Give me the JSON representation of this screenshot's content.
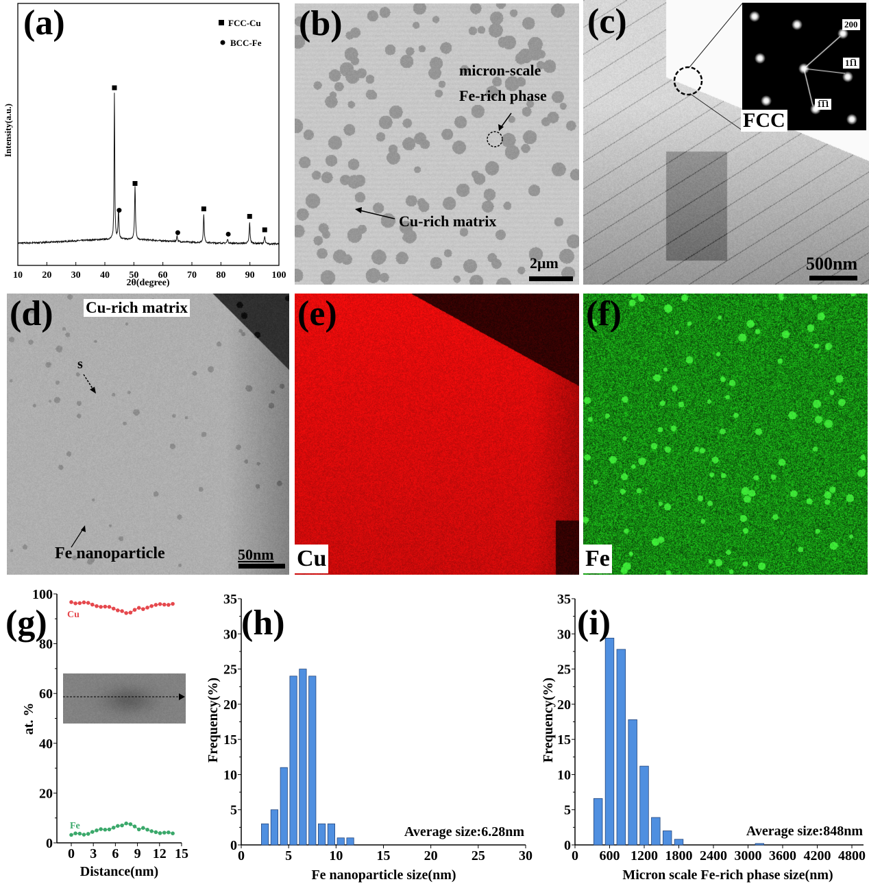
{
  "panels": {
    "b": {
      "label": "(b)",
      "annotation_phase_1": "micron-scale",
      "annotation_phase_2": "Fe-rich phase",
      "annotation_matrix": "Cu-rich matrix",
      "scale_bar": "2μm"
    },
    "c": {
      "label": "(c)",
      "scale_bar": "500nm",
      "inset": {
        "structure": "FCC",
        "spot_200": "200",
        "spot_a": "11̅1",
        "spot_b": "1̅1̅1"
      }
    },
    "d": {
      "label": "(d)",
      "region": "Cu-rich matrix",
      "line_start": "s",
      "particle": "Fe nanoparticle",
      "scale_bar": "50nm"
    },
    "e": {
      "label": "(e)",
      "element": "Cu",
      "color": "#ff1a1a"
    },
    "f": {
      "label": "(f)",
      "element": "Fe",
      "color": "#2fd12f"
    }
  },
  "chart_data": [
    {
      "panel_label": "(a)",
      "type": "line",
      "xlabel": "2θ(degree)",
      "ylabel": "Intensity(a.u.)",
      "xlim": [
        10,
        100
      ],
      "xticks": [
        "10",
        "20",
        "30",
        "40",
        "50",
        "60",
        "70",
        "80",
        "90",
        "100"
      ],
      "legend": {
        "placement": "top-right",
        "entries": [
          "FCC-Cu",
          "BCC-Fe"
        ]
      },
      "peaks": [
        {
          "two_theta": 43.3,
          "intensity": 100,
          "phase": "FCC-Cu"
        },
        {
          "two_theta": 44.7,
          "intensity": 19,
          "phase": "BCC-Fe"
        },
        {
          "two_theta": 50.4,
          "intensity": 36,
          "phase": "FCC-Cu"
        },
        {
          "two_theta": 64.9,
          "intensity": 4,
          "phase": "BCC-Fe"
        },
        {
          "two_theta": 74.1,
          "intensity": 19,
          "phase": "FCC-Cu"
        },
        {
          "two_theta": 82.3,
          "intensity": 3,
          "phase": "BCC-Fe"
        },
        {
          "two_theta": 89.9,
          "intensity": 14,
          "phase": "FCC-Cu"
        },
        {
          "two_theta": 95.1,
          "intensity": 5,
          "phase": "FCC-Cu"
        }
      ]
    },
    {
      "panel_label": "(g)",
      "type": "scatter",
      "xlabel": "Distance(nm)",
      "ylabel": "at. %",
      "xlim": [
        -2,
        15
      ],
      "ylim": [
        0,
        100
      ],
      "xticks": [
        "0",
        "3",
        "6",
        "9",
        "12",
        "15"
      ],
      "yticks": [
        "0",
        "20",
        "40",
        "60",
        "80",
        "100"
      ],
      "x": [
        0,
        0.57,
        1.15,
        1.72,
        2.3,
        2.87,
        3.45,
        4.02,
        4.6,
        5.17,
        5.75,
        6.32,
        6.9,
        7.47,
        8.05,
        8.62,
        9.2,
        9.77,
        10.35,
        10.92,
        11.5,
        12.07,
        12.65,
        13.22,
        13.8
      ],
      "series": [
        {
          "name": "Cu",
          "color": "#e5484d",
          "values": [
            96.7,
            96.2,
            96.3,
            96.6,
            96.4,
            95.7,
            95.1,
            94.8,
            94.9,
            94.8,
            94.1,
            93.4,
            93.1,
            92.3,
            92.5,
            93.6,
            94.4,
            93.9,
            94.5,
            95.1,
            95.6,
            95.9,
            95.7,
            95.6,
            96.0
          ]
        },
        {
          "name": "Fe",
          "color": "#3aa86a",
          "values": [
            3.2,
            3.8,
            3.7,
            3.3,
            3.6,
            4.4,
            5.0,
            5.5,
            5.3,
            5.4,
            6.1,
            6.8,
            7.0,
            7.8,
            7.5,
            6.6,
            5.4,
            6.0,
            5.3,
            4.7,
            4.3,
            3.9,
            4.1,
            4.2,
            3.8
          ]
        }
      ]
    },
    {
      "panel_label": "(h)",
      "type": "bar",
      "xlabel": "Fe nanoparticle size(nm)",
      "ylabel": "Frequency(%)",
      "xlim": [
        0,
        30
      ],
      "ylim": [
        0,
        35
      ],
      "xticks": [
        "0",
        "5",
        "10",
        "15",
        "20",
        "25",
        "30"
      ],
      "yticks": [
        "0",
        "5",
        "10",
        "15",
        "20",
        "25",
        "30",
        "35"
      ],
      "bin_centers": [
        2.5,
        3.5,
        4.5,
        5.5,
        6.5,
        7.5,
        8.5,
        9.5,
        10.5,
        11.5
      ],
      "values": [
        3,
        5,
        11,
        24,
        25,
        24,
        3,
        3,
        1,
        1
      ],
      "annotation": "Average size:6.28nm",
      "color": "#4f8fe0"
    },
    {
      "panel_label": "(i)",
      "type": "bar",
      "xlabel": "Micron scale Fe-rich phase size(nm)",
      "ylabel": "Frequency(%)",
      "xlim": [
        0,
        5000
      ],
      "ylim": [
        0,
        35
      ],
      "xticks": [
        "0",
        "600",
        "1200",
        "1800",
        "2400",
        "3000",
        "3600",
        "4200",
        "4800"
      ],
      "yticks": [
        "0",
        "5",
        "10",
        "15",
        "20",
        "25",
        "30",
        "35"
      ],
      "bin_centers": [
        400,
        600,
        800,
        1000,
        1200,
        1400,
        1600,
        1800,
        3200
      ],
      "values": [
        6.6,
        29.4,
        27.8,
        17.8,
        11.2,
        3.9,
        2.0,
        0.8,
        0.2
      ],
      "annotation": "Average size:848nm",
      "color": "#4f8fe0"
    }
  ]
}
